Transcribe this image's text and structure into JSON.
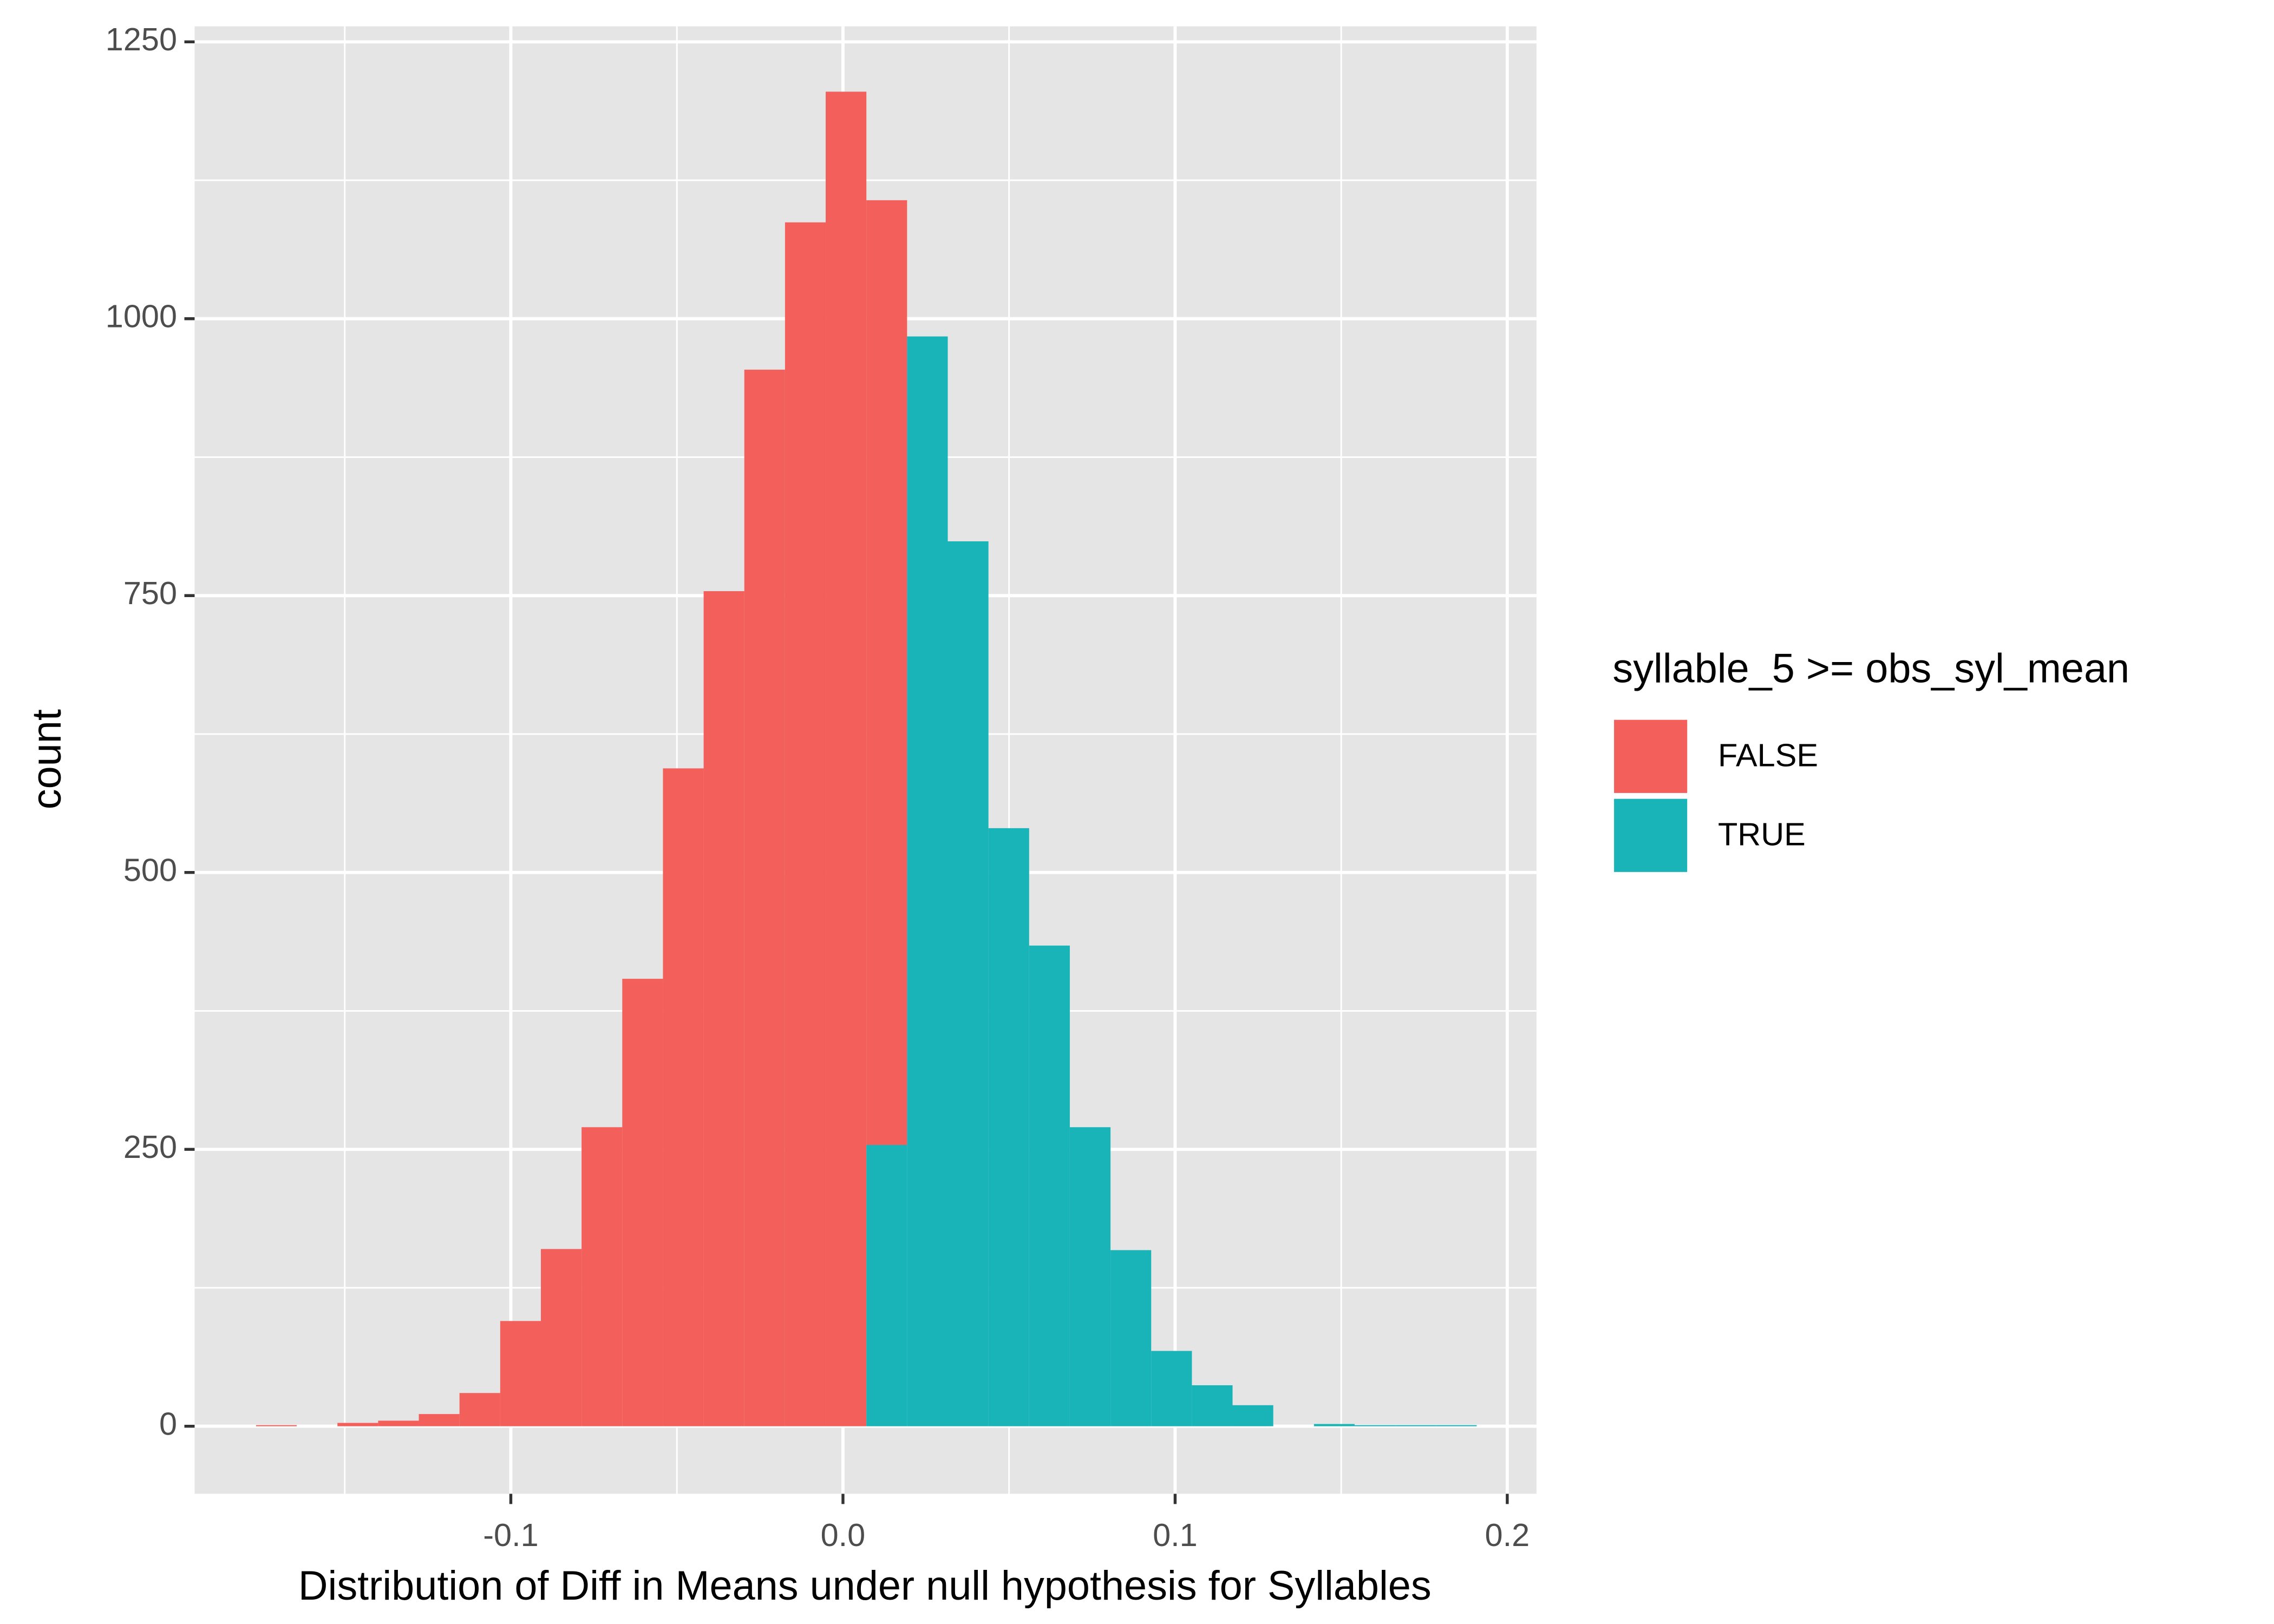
{
  "chart_data": {
    "type": "histogram",
    "x_label": "Distribution of Diff in Means under null hypothesis for Syllables",
    "y_label": "count",
    "legend_title": "syllable_5 >= obs_syl_mean",
    "legend_position": "right",
    "stacked": true,
    "grid": true,
    "minor_grid": true,
    "bins": [
      -0.1767,
      -0.16445,
      -0.1522,
      -0.13995,
      -0.1277,
      -0.11545,
      -0.1032,
      -0.09095,
      -0.0787,
      -0.06645,
      -0.0542,
      -0.04195,
      -0.0297,
      -0.01745,
      -0.0052,
      0.00705,
      0.0193,
      0.03155,
      0.0438,
      0.05605,
      0.0683,
      0.08055,
      0.0928,
      0.10505,
      0.1173,
      0.12955,
      0.1418,
      0.15405,
      0.1663,
      0.17855,
      0.1908
    ],
    "series": [
      {
        "name": "FALSE",
        "color": "#f35f5a",
        "values": [
          1,
          0,
          3,
          5,
          11,
          30,
          95,
          160,
          270,
          404,
          594,
          754,
          954,
          1087,
          1205,
          853,
          0,
          0,
          0,
          0,
          0,
          0,
          0,
          0,
          0,
          0,
          0,
          0,
          0,
          0
        ]
      },
      {
        "name": "TRUE",
        "color": "#19b4b8",
        "values": [
          0,
          0,
          0,
          0,
          0,
          0,
          0,
          0,
          0,
          0,
          0,
          0,
          0,
          0,
          0,
          254,
          984,
          799,
          540,
          434,
          270,
          159,
          68,
          37,
          19,
          0,
          2,
          1,
          1,
          1
        ]
      }
    ],
    "xlim": [
      -0.1952,
      0.2088
    ],
    "xticks": [
      -0.1,
      {
        "value": 0,
        "label": "0.0"
      },
      0.1,
      0.2
    ],
    "ylim": [
      -61,
      1264
    ],
    "yticks": [
      0,
      250,
      500,
      750,
      1000,
      1250
    ]
  }
}
